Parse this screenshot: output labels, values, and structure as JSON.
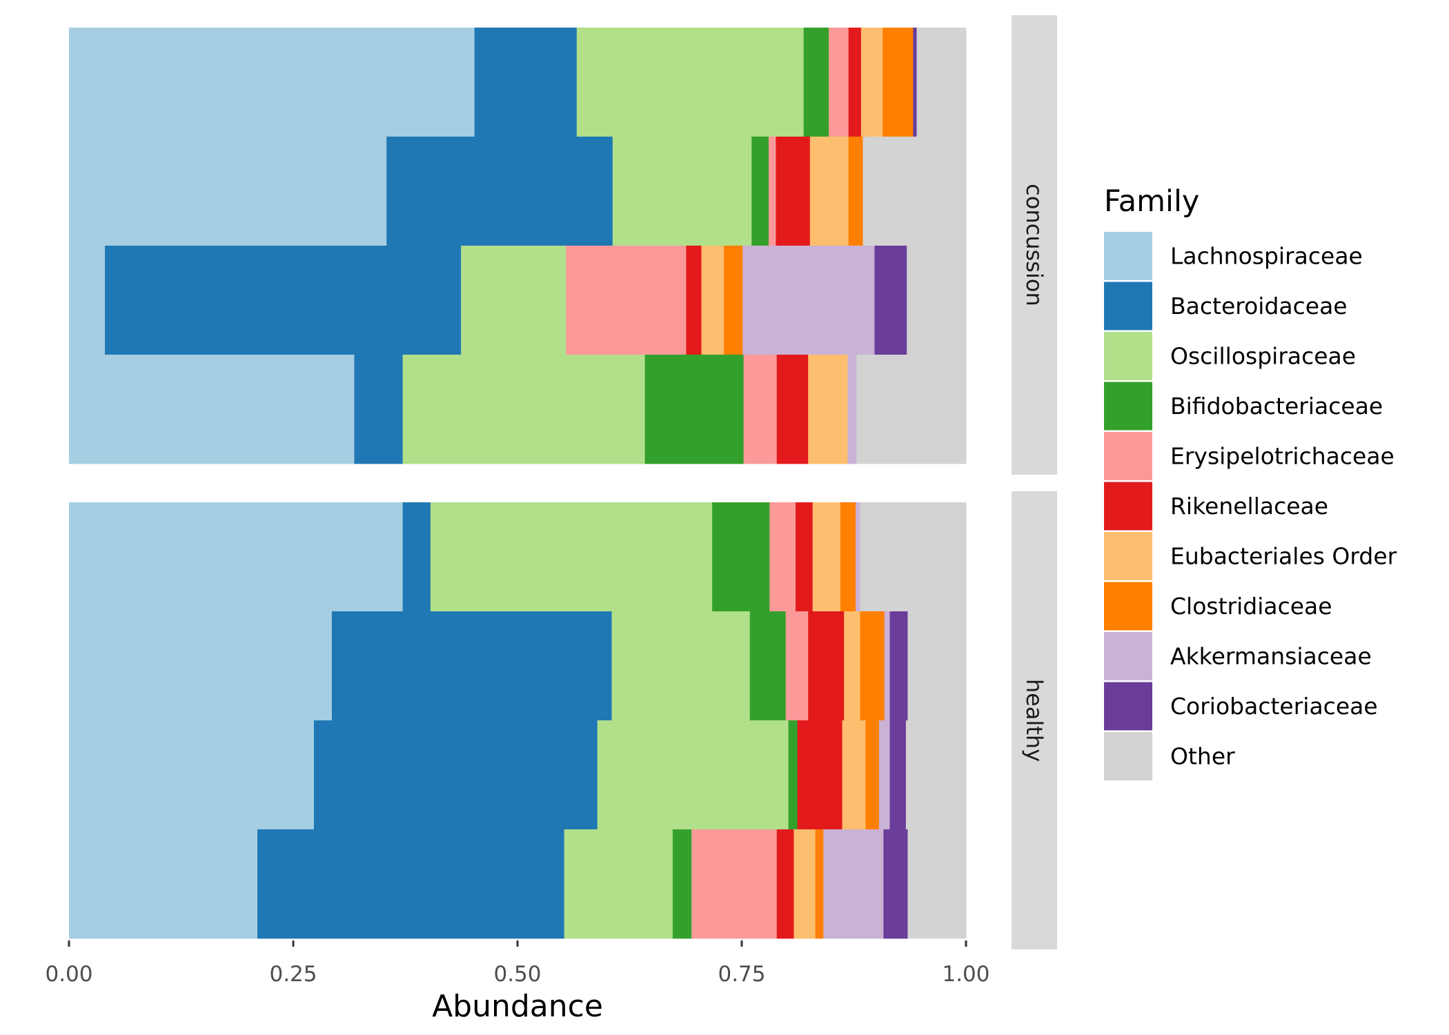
{
  "chart_data": {
    "type": "bar",
    "orientation": "horizontal",
    "stacked": true,
    "xlabel": "Abundance",
    "ylabel": "",
    "xlim": [
      0,
      1
    ],
    "x_ticks": [
      "0.00",
      "0.25",
      "0.50",
      "0.75",
      "1.00"
    ],
    "grid": false,
    "legend": {
      "title": "Family",
      "placement": "right",
      "entries": [
        {
          "name": "Lachnospiraceae",
          "color": "#A6CEE3"
        },
        {
          "name": "Bacteroidaceae",
          "color": "#1F78B4"
        },
        {
          "name": "Oscillospiraceae",
          "color": "#B2DF8A"
        },
        {
          "name": "Bifidobacteriaceae",
          "color": "#33A02C"
        },
        {
          "name": "Erysipelotrichaceae",
          "color": "#FB9A99"
        },
        {
          "name": "Rikenellaceae",
          "color": "#E31A1C"
        },
        {
          "name": "Eubacteriales Order",
          "color": "#FDBF6F"
        },
        {
          "name": "Clostridiaceae",
          "color": "#FF7F00"
        },
        {
          "name": "Akkermansiaceae",
          "color": "#CAB2D6"
        },
        {
          "name": "Coriobacteriaceae",
          "color": "#6A3D9A"
        },
        {
          "name": "Other",
          "color": "#D3D3D3"
        }
      ]
    },
    "facets": [
      {
        "label": "concussion",
        "rows": [
          [
            0.452,
            0.114,
            0.253,
            0.028,
            0.022,
            0.014,
            0.024,
            0.034,
            0.0,
            0.004,
            0.055
          ],
          [
            0.354,
            0.252,
            0.155,
            0.019,
            0.008,
            0.038,
            0.043,
            0.016,
            0.0,
            0.0,
            0.115
          ],
          [
            0.04,
            0.397,
            0.117,
            0.0,
            0.134,
            0.017,
            0.025,
            0.021,
            0.147,
            0.036,
            0.066
          ],
          [
            0.318,
            0.054,
            0.27,
            0.11,
            0.037,
            0.035,
            0.044,
            0.0,
            0.01,
            0.0,
            0.122
          ]
        ]
      },
      {
        "label": "healthy",
        "rows": [
          [
            0.372,
            0.031,
            0.314,
            0.064,
            0.029,
            0.019,
            0.031,
            0.017,
            0.005,
            0.0,
            0.118
          ],
          [
            0.293,
            0.312,
            0.154,
            0.04,
            0.025,
            0.04,
            0.018,
            0.027,
            0.006,
            0.02,
            0.065
          ],
          [
            0.273,
            0.316,
            0.213,
            0.01,
            0.0,
            0.05,
            0.026,
            0.015,
            0.012,
            0.018,
            0.067
          ],
          [
            0.21,
            0.342,
            0.121,
            0.021,
            0.095,
            0.019,
            0.024,
            0.009,
            0.067,
            0.027,
            0.065
          ]
        ]
      }
    ]
  }
}
